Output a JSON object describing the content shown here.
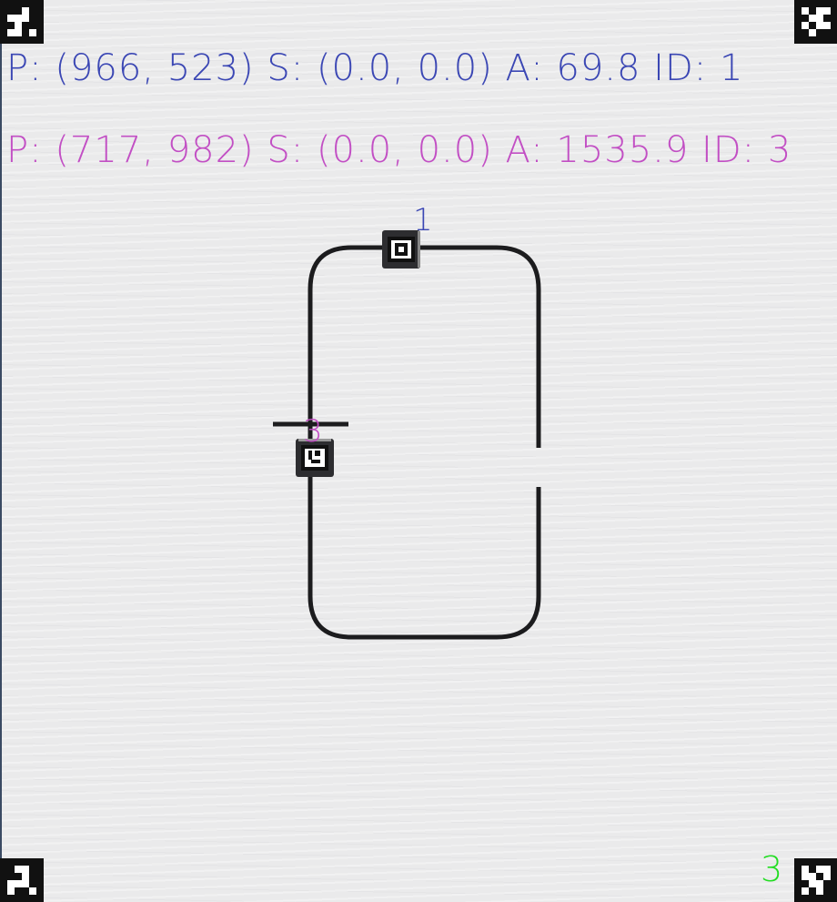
{
  "colors": {
    "robot_1": "#3b47b4",
    "robot_3": "#c24fc4",
    "count": "#22dd22",
    "track": "#1c1c1e",
    "marker": "#111111"
  },
  "readouts": [
    {
      "text": "P: (966, 523) S: (0.0, 0.0) A: 69.8 ID: 1"
    },
    {
      "text": "P: (717, 982) S: (0.0, 0.0) A: 1535.9 ID: 3"
    }
  ],
  "robots": [
    {
      "id_label": "1"
    },
    {
      "id_label": "3"
    }
  ],
  "detected_count": "3",
  "icons": {
    "corner_markers": [
      "aruco-marker-icon",
      "aruco-marker-icon",
      "aruco-marker-icon",
      "aruco-marker-icon"
    ],
    "robot_tags": [
      "aruco-marker-icon",
      "aruco-marker-icon"
    ]
  }
}
